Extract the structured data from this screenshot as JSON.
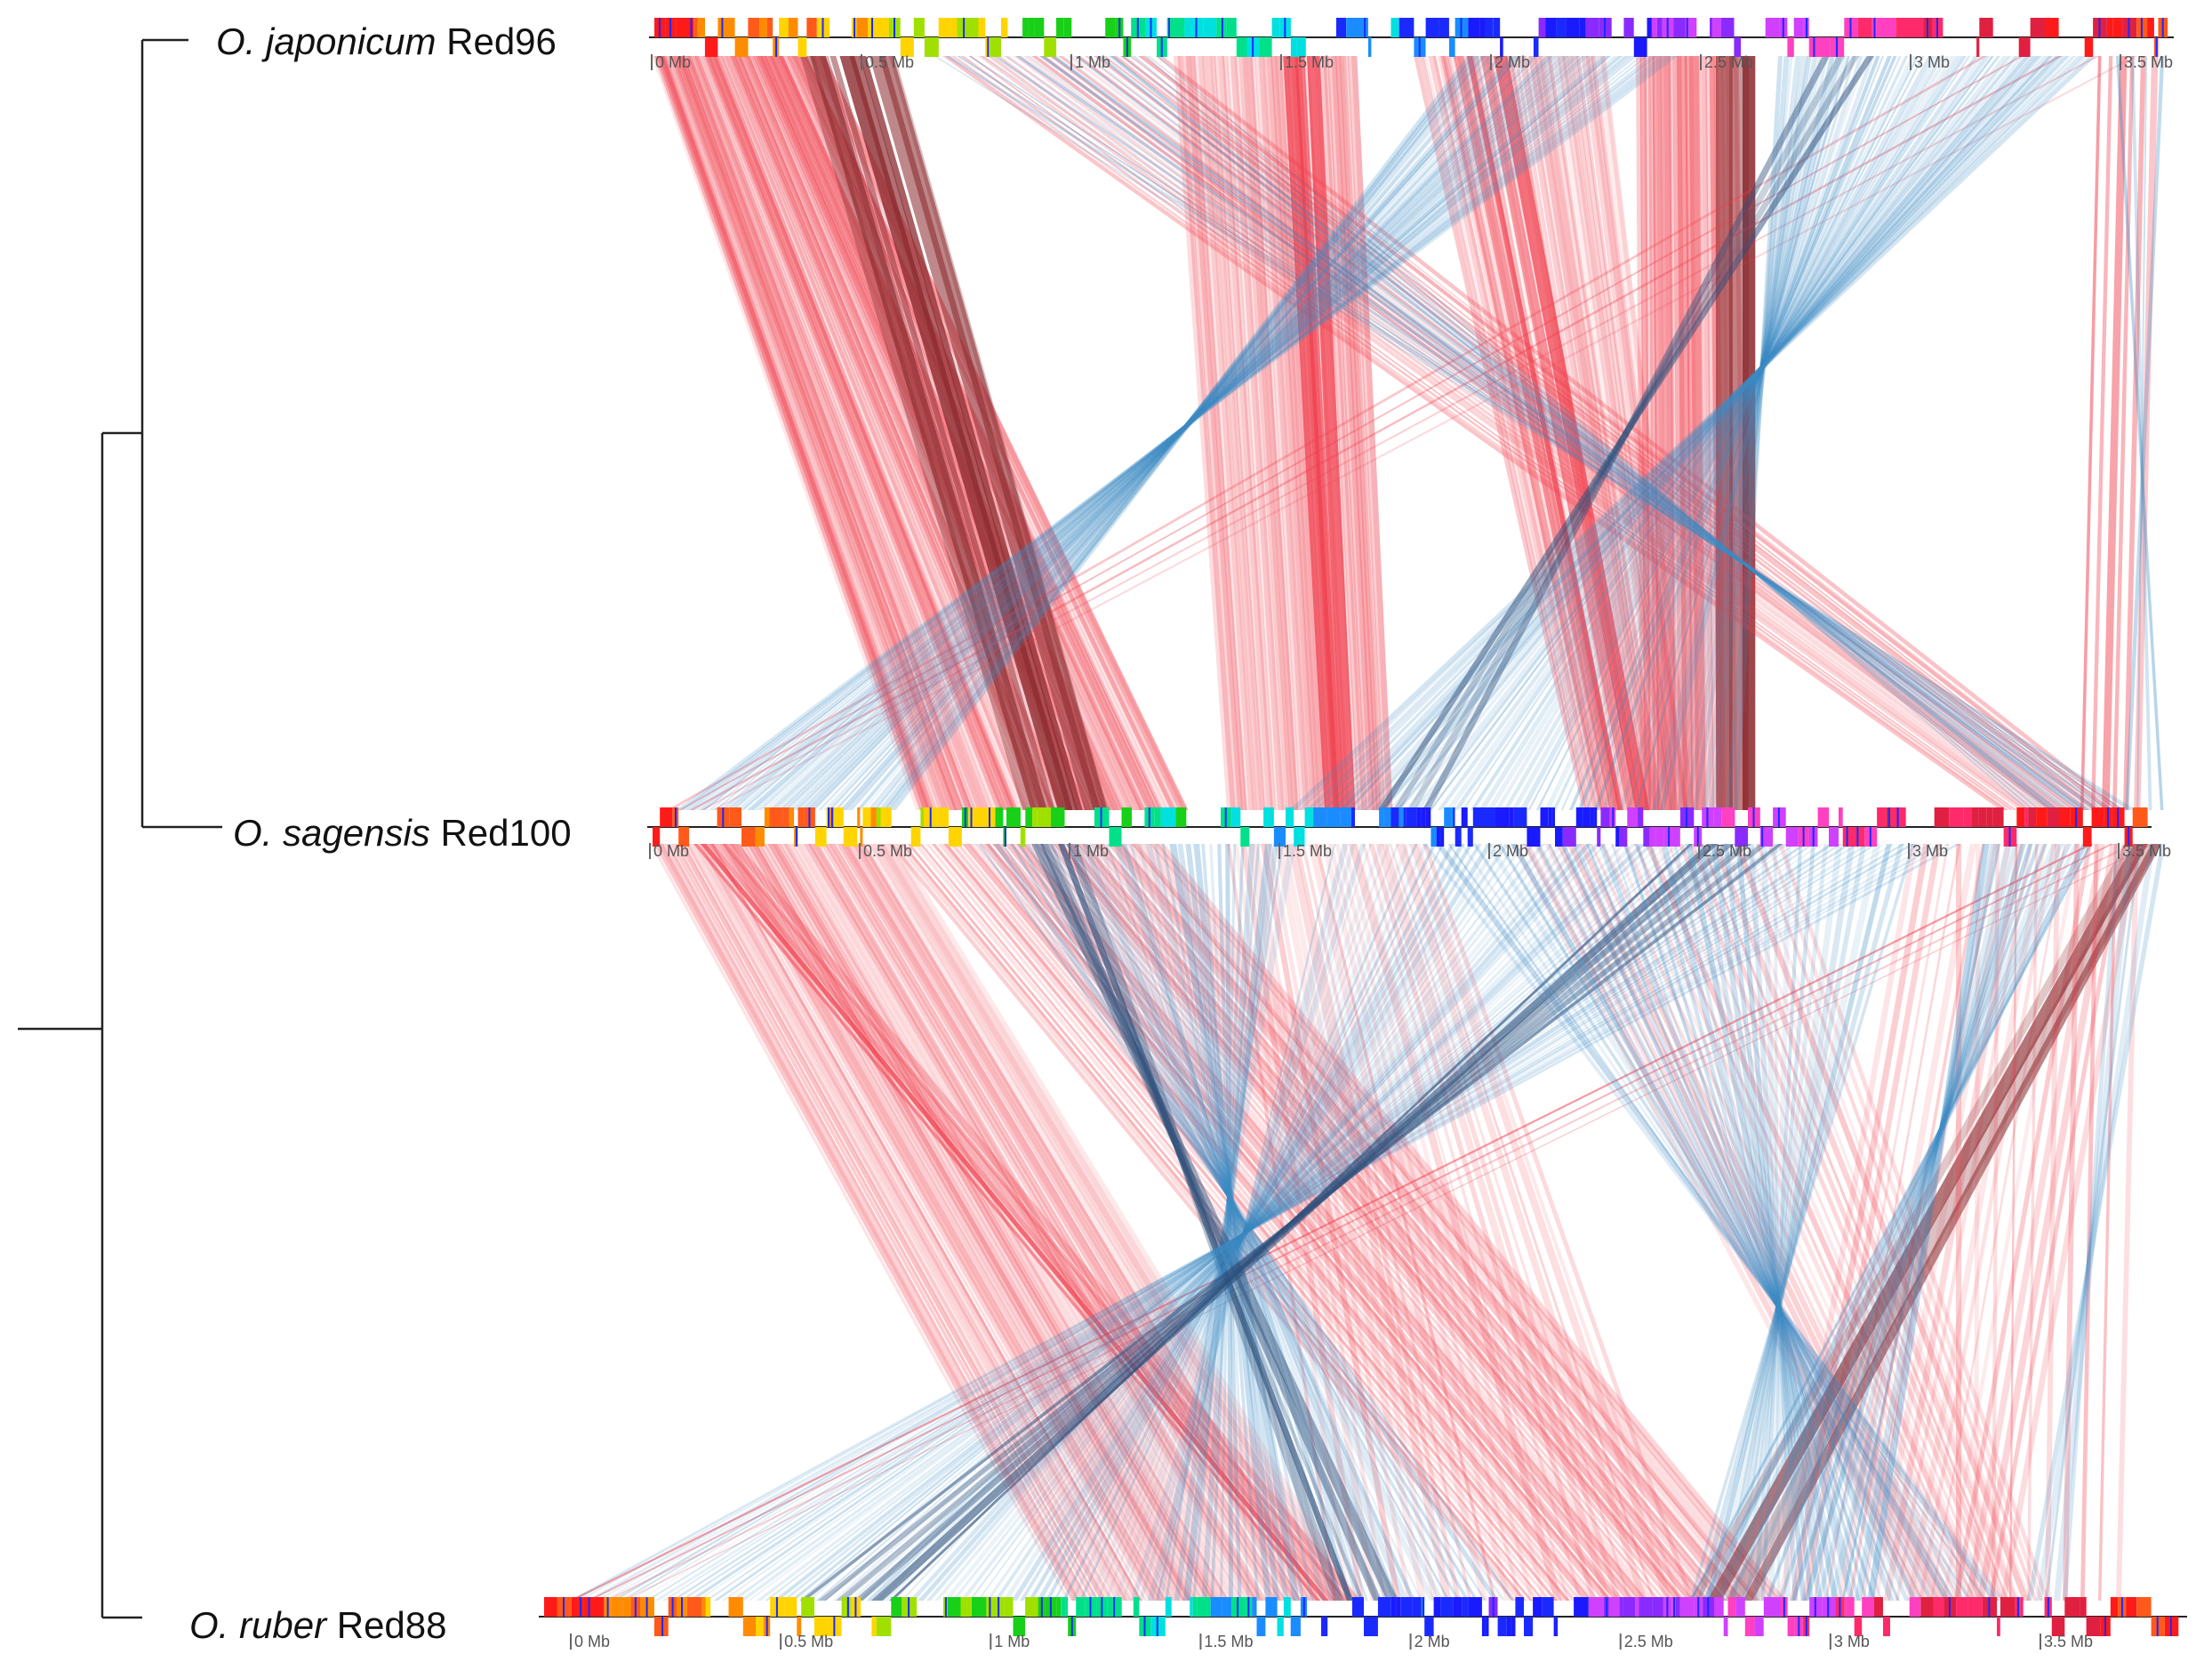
{
  "genomes": [
    {
      "genus": "O. japonicum",
      "strain": "Red96"
    },
    {
      "genus": "O. sagensis",
      "strain": "Red100"
    },
    {
      "genus": "O. ruber",
      "strain": "Red88"
    }
  ],
  "ticks": [
    [
      "0 Mb",
      "0.5 Mb",
      "1 Mb",
      "1.5 Mb",
      "2 Mb",
      "2.5 Mb",
      "3 Mb",
      "3.5 Mb"
    ],
    [
      "0 Mb",
      "0.5 Mb",
      "1 Mb",
      "1.5 Mb",
      "2 Mb",
      "2.5 Mb",
      "3 Mb",
      "3.5 Mb"
    ],
    [
      "0 Mb",
      "0.5 Mb",
      "1 Mb",
      "1.5 Mb",
      "2 Mb",
      "2.5 Mb",
      "3 Mb",
      "3.5 Mb"
    ]
  ],
  "colors": {
    "forward_match": "#f03c4a",
    "forward_dark": "#8b2a2e",
    "reverse_match": "#3d8bc4",
    "reverse_dark": "#2c4e7a",
    "tree_line": "#222222",
    "axis_line": "#222222",
    "tick_text": "#555555"
  }
}
